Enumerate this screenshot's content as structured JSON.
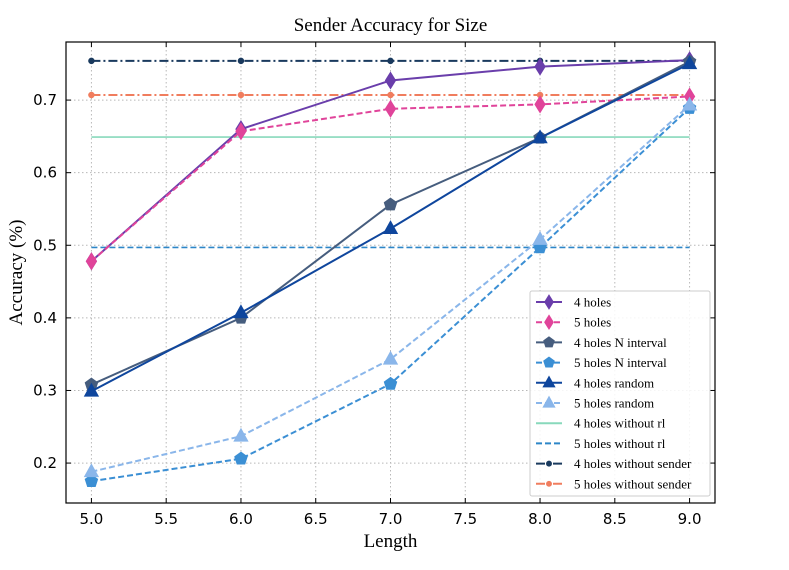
{
  "chart_data": {
    "type": "line",
    "title": "Sender Accuracy for Size",
    "xlabel": "Length",
    "ylabel": "Accuracy (%)",
    "xlim": [
      4.83,
      9.17
    ],
    "ylim": [
      0.145,
      0.78
    ],
    "xticks": [
      5.0,
      5.5,
      6.0,
      6.5,
      7.0,
      7.5,
      8.0,
      8.5,
      9.0
    ],
    "yticks": [
      0.2,
      0.3,
      0.4,
      0.5,
      0.6,
      0.7
    ],
    "xtick_labels": [
      "5.0",
      "5.5",
      "6.0",
      "6.5",
      "7.0",
      "7.5",
      "8.0",
      "8.5",
      "9.0"
    ],
    "ytick_labels": [
      "0.2",
      "0.3",
      "0.4",
      "0.5",
      "0.6",
      "0.7"
    ],
    "grid": true,
    "legend_position": "lower-right",
    "x": [
      5,
      6,
      7,
      8,
      9
    ],
    "series": [
      {
        "name": "4 holes",
        "values": [
          0.478,
          0.66,
          0.727,
          0.746,
          0.755
        ],
        "color": "#6a3eab",
        "dash": "solid",
        "marker": "diamond"
      },
      {
        "name": "5 holes",
        "values": [
          0.478,
          0.657,
          0.688,
          0.694,
          0.705
        ],
        "color": "#e0449a",
        "dash": "dashed",
        "marker": "diamond"
      },
      {
        "name": "4 holes N interval",
        "values": [
          0.308,
          0.4,
          0.556,
          0.648,
          0.753
        ],
        "color": "#465d7e",
        "dash": "solid",
        "marker": "pentagon"
      },
      {
        "name": "5 holes N interval",
        "values": [
          0.175,
          0.206,
          0.309,
          0.497,
          0.689
        ],
        "color": "#3b8fd4",
        "dash": "dashed",
        "marker": "pentagon"
      },
      {
        "name": "4 holes random",
        "values": [
          0.299,
          0.407,
          0.523,
          0.648,
          0.75
        ],
        "color": "#0f469d",
        "dash": "solid",
        "marker": "triangle"
      },
      {
        "name": "5 holes random",
        "values": [
          0.188,
          0.237,
          0.343,
          0.508,
          0.693
        ],
        "color": "#8ab6ea",
        "dash": "dashed",
        "marker": "triangle"
      },
      {
        "name": "4 holes without rl",
        "values": [
          0.649,
          0.649,
          0.649,
          0.649,
          0.649
        ],
        "color": "#88d9bc",
        "dash": "solid",
        "marker": "none",
        "hline": true
      },
      {
        "name": "5 holes without rl",
        "values": [
          0.497,
          0.497,
          0.497,
          0.497,
          0.497
        ],
        "color": "#2d86c8",
        "dash": "dashed",
        "marker": "none",
        "hline": true
      },
      {
        "name": "4 holes without sender",
        "values": [
          0.754,
          0.754,
          0.754,
          0.754,
          0.754
        ],
        "color": "#1a3a5e",
        "dash": "dashdot",
        "marker": "circle"
      },
      {
        "name": "5 holes without sender",
        "values": [
          0.707,
          0.707,
          0.707,
          0.707,
          0.707
        ],
        "color": "#f07d5e",
        "dash": "dashdot",
        "marker": "circle"
      }
    ]
  }
}
